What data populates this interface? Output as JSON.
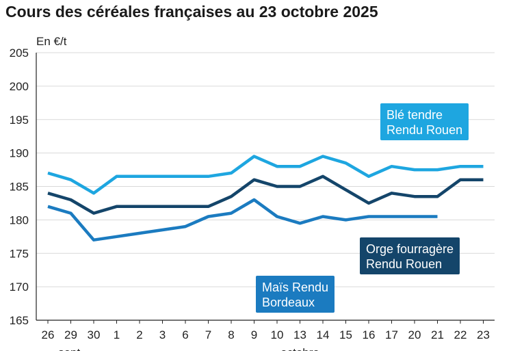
{
  "title": "Cours des céréales françaises au 23 octobre 2025",
  "chart_data": {
    "type": "line",
    "title": "Cours des céréales françaises au 23 octobre 2025",
    "ylabel": "En €/t",
    "xlabel": "",
    "ylim": [
      165,
      205
    ],
    "yticks": [
      165,
      170,
      175,
      180,
      185,
      190,
      195,
      200,
      205
    ],
    "grid": true,
    "categories": [
      "26",
      "29",
      "30",
      "1",
      "2",
      "3",
      "6",
      "7",
      "8",
      "9",
      "10",
      "13",
      "14",
      "15",
      "16",
      "17",
      "20",
      "21",
      "22",
      "23"
    ],
    "month_labels": [
      {
        "text": "sept.",
        "at_category": 1
      },
      {
        "text": "octobre",
        "at_category": 11
      }
    ],
    "series": [
      {
        "name": "Blé tendre Rendu Rouen",
        "label_lines": [
          "Blé tendre",
          "Rendu Rouen"
        ],
        "color": "#1ea6e0",
        "values": [
          187,
          186,
          184,
          186.5,
          186.5,
          186.5,
          186.5,
          186.5,
          187,
          189.5,
          188,
          188,
          189.5,
          188.5,
          186.5,
          188,
          187.5,
          187.5,
          188,
          188
        ]
      },
      {
        "name": "Orge fourragère Rendu Rouen",
        "label_lines": [
          "Orge fourragère",
          "Rendu Rouen"
        ],
        "color": "#14456a",
        "values": [
          184,
          183,
          181,
          182,
          182,
          182,
          182,
          182,
          183.5,
          186,
          185,
          185,
          186.5,
          184.5,
          182.5,
          184,
          183.5,
          183.5,
          186,
          186
        ]
      },
      {
        "name": "Maïs Rendu Bordeaux",
        "label_lines": [
          "Maïs Rendu",
          "Bordeaux"
        ],
        "color": "#1b7bc0",
        "values": [
          182,
          181,
          177,
          177.5,
          178,
          178.5,
          179,
          180.5,
          181,
          183,
          180.5,
          179.5,
          180.5,
          180,
          180.5,
          180.5,
          180.5,
          180.5,
          null,
          null
        ]
      }
    ]
  }
}
